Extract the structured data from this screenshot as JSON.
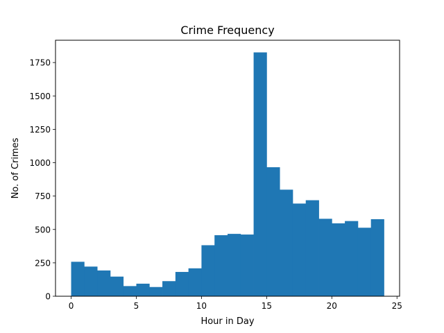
{
  "chart_data": {
    "type": "bar",
    "title": "Crime Frequency",
    "xlabel": "Hour in Day",
    "ylabel": "No. of Crimes",
    "bin_edges": [
      0,
      1,
      2,
      3,
      4,
      5,
      6,
      7,
      8,
      9,
      10,
      11,
      12,
      13,
      14,
      15,
      16,
      17,
      18,
      19,
      20,
      21,
      22,
      23,
      24
    ],
    "values": [
      258,
      222,
      193,
      147,
      76,
      94,
      69,
      113,
      182,
      209,
      382,
      457,
      467,
      462,
      1826,
      966,
      798,
      694,
      719,
      580,
      546,
      563,
      513,
      577
    ],
    "xlim": [
      -1.2,
      25.2
    ],
    "ylim": [
      0,
      1917
    ],
    "xticks": [
      0,
      5,
      10,
      15,
      20,
      25
    ],
    "xtick_labels": [
      "0",
      "5",
      "10",
      "15",
      "20",
      "25"
    ],
    "yticks": [
      0,
      250,
      500,
      750,
      1000,
      1250,
      1500,
      1750
    ],
    "ytick_labels": [
      "0",
      "250",
      "500",
      "750",
      "1000",
      "1250",
      "1500",
      "1750"
    ],
    "bar_color": "#1f77b4",
    "grid": false,
    "legend": "none"
  }
}
